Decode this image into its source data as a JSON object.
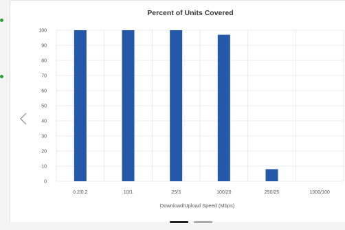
{
  "colors": {
    "bar": "#2359a8",
    "grid": "#e4e4e4",
    "text": "#333333",
    "tick_text": "#555555",
    "accent_green": "#2e9e3a",
    "pager_active": "#222222",
    "pager_inactive": "#aaaaaa",
    "chevron": "#9a9a9a"
  },
  "icons": {
    "previous": "chevron-left-icon"
  },
  "pager": {
    "count": 2,
    "active_index": 0
  },
  "chart_data": {
    "type": "bar",
    "title": "Percent of Units Covered",
    "xlabel": "Download/Upload Speed (Mbps)",
    "ylabel": "",
    "categories": [
      "0.2/0.2",
      "10/1",
      "25/3",
      "100/20",
      "250/25",
      "1000/100"
    ],
    "values": [
      100,
      100,
      100,
      97,
      8,
      0
    ],
    "ylim": [
      0,
      100
    ],
    "yticks": [
      0,
      10,
      20,
      30,
      40,
      50,
      60,
      70,
      80,
      90,
      100
    ],
    "grid": true,
    "legend": "none"
  }
}
